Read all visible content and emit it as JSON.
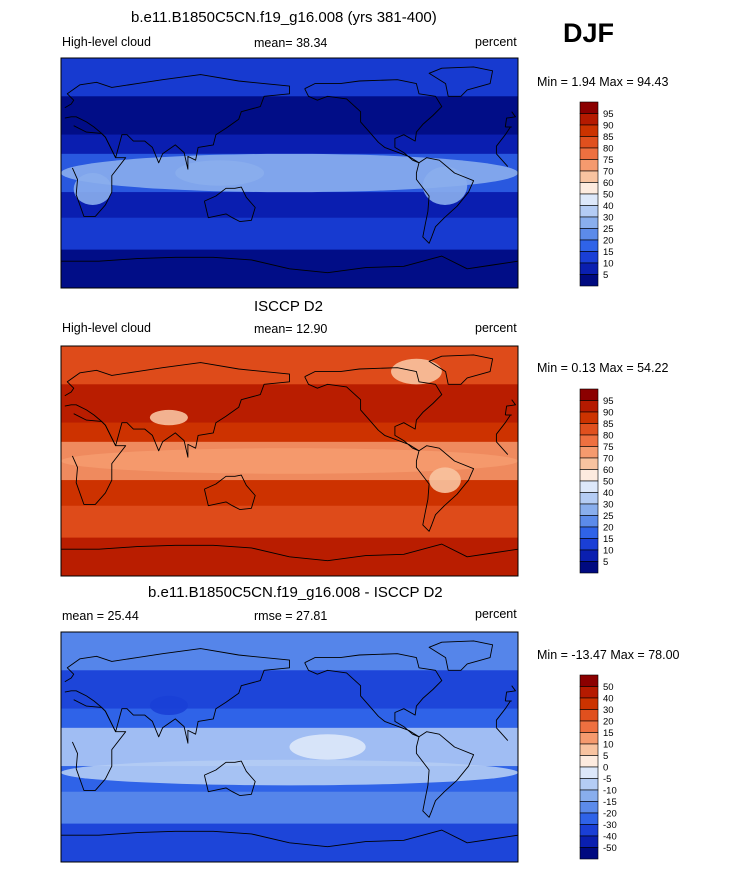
{
  "season": "DJF",
  "chart_data": [
    {
      "type": "heatmap",
      "title": "b.e11.B1850C5CN.f19_g16.008 (yrs 381-400)",
      "variable": "High-level cloud",
      "mean_label": "mean=",
      "mean": "38.34",
      "units": "percent",
      "min_label": "Min =",
      "min": "1.94",
      "max_label": "Max =",
      "max": "94.43",
      "colorbar": {
        "levels": [
          "95",
          "90",
          "85",
          "80",
          "75",
          "70",
          "60",
          "50",
          "40",
          "30",
          "25",
          "20",
          "15",
          "10",
          "5"
        ],
        "colors": [
          "#8b0000",
          "#b51a00",
          "#cc3300",
          "#e0501e",
          "#ee7040",
          "#f59a6e",
          "#f8c3a0",
          "#fdebdf",
          "#dde8fa",
          "#b4ccf4",
          "#89aeed",
          "#5c8bea",
          "#2f63e8",
          "#1a3fd6",
          "#0a1fb0",
          "#000a80"
        ]
      },
      "field_levels": {
        "base": 1,
        "cold": 0,
        "mid": 2,
        "warm": 3,
        "hot": 5
      },
      "features": [
        {
          "name": "tropics",
          "level": "hot",
          "lon": [
            -180,
            180
          ],
          "lat": [
            -15,
            15
          ]
        },
        {
          "name": "maritime-continent",
          "level": "hot",
          "lon": [
            90,
            160
          ],
          "lat": [
            -10,
            10
          ]
        },
        {
          "name": "south-america",
          "level": "hot",
          "lon": [
            -75,
            -40
          ],
          "lat": [
            -25,
            5
          ]
        },
        {
          "name": "africa",
          "level": "hot",
          "lon": [
            10,
            40
          ],
          "lat": [
            -25,
            0
          ]
        }
      ]
    },
    {
      "type": "heatmap",
      "title": "ISCCP D2",
      "variable": "High-level cloud",
      "mean_label": "mean=",
      "mean": "12.90",
      "units": "percent",
      "min_label": "Min =",
      "min": "0.13",
      "max_label": "Max =",
      "max": "54.22",
      "colorbar": {
        "levels": [
          "95",
          "90",
          "85",
          "80",
          "75",
          "70",
          "60",
          "50",
          "40",
          "30",
          "25",
          "20",
          "15",
          "10",
          "5"
        ],
        "colors": [
          "#8b0000",
          "#b51a00",
          "#cc3300",
          "#e0501e",
          "#ee7040",
          "#f59a6e",
          "#f8c3a0",
          "#fdebdf",
          "#dde8fa",
          "#b4ccf4",
          "#89aeed",
          "#5c8bea",
          "#2f63e8",
          "#1a3fd6",
          "#0a1fb0",
          "#000a80"
        ]
      },
      "field_levels": {
        "base": 13,
        "cold": 14,
        "mid": 12,
        "warm": 10,
        "hot": 9
      },
      "features": [
        {
          "name": "itcz",
          "level": "warm",
          "lon": [
            -180,
            180
          ],
          "lat": [
            -10,
            10
          ]
        },
        {
          "name": "south-america",
          "level": "hot",
          "lon": [
            -70,
            -45
          ],
          "lat": [
            -25,
            -5
          ]
        },
        {
          "name": "tibet",
          "level": "hot",
          "lon": [
            70,
            100
          ],
          "lat": [
            28,
            40
          ]
        },
        {
          "name": "arctic-canada",
          "level": "hot",
          "lon": [
            -100,
            -60
          ],
          "lat": [
            60,
            80
          ]
        }
      ]
    },
    {
      "type": "heatmap",
      "title": "b.e11.B1850C5CN.f19_g16.008 - ISCCP D2",
      "mean_label": "mean =",
      "mean": "25.44",
      "rmse_label": "rmse =",
      "rmse": "27.81",
      "units": "percent",
      "min_label": "Min =",
      "min": "-13.47",
      "max_label": "Max =",
      "max": "78.00",
      "colorbar": {
        "levels": [
          "50",
          "40",
          "30",
          "20",
          "15",
          "10",
          "5",
          "0",
          "-5",
          "-10",
          "-15",
          "-20",
          "-30",
          "-40",
          "-50"
        ],
        "colors": [
          "#8b0000",
          "#b51a00",
          "#cc3300",
          "#e0501e",
          "#ee7040",
          "#f59a6e",
          "#f8c3a0",
          "#fdebdf",
          "#dde8fa",
          "#b4ccf4",
          "#89aeed",
          "#5c8bea",
          "#2f63e8",
          "#1a3fd6",
          "#0a1fb0",
          "#000a80"
        ]
      },
      "field_levels": {
        "base": 3,
        "cold": 2,
        "mid": 4,
        "warm": 6,
        "hot": 7
      },
      "features": [
        {
          "name": "tropical-pacific",
          "level": "hot",
          "lon": [
            -180,
            -120
          ],
          "lat": [
            -10,
            10
          ]
        },
        {
          "name": "tibet",
          "level": "cold",
          "lon": [
            70,
            100
          ],
          "lat": [
            25,
            40
          ]
        },
        {
          "name": "south-atlantic",
          "level": "warm",
          "lon": [
            -20,
            10
          ],
          "lat": [
            -30,
            -10
          ]
        }
      ]
    }
  ]
}
